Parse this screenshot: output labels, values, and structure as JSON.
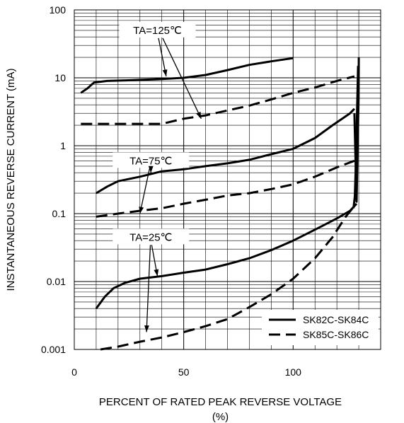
{
  "chart_data": {
    "type": "line",
    "xlabel_line1": "PERCENT OF RATED PEAK REVERSE VOLTAGE",
    "xlabel_line2": "(%)",
    "ylabel": "INSTANTANEOUS REVERSE CURRENT (mA)",
    "xlim": [
      0,
      140
    ],
    "ylim": [
      0.001,
      100
    ],
    "y_scale": "log",
    "x_ticks": [
      {
        "value": 0,
        "label": "0"
      },
      {
        "value": 50,
        "label": "50"
      },
      {
        "value": 100,
        "label": "100"
      }
    ],
    "y_ticks": [
      {
        "value": 100,
        "label": "100"
      },
      {
        "value": 10,
        "label": "10"
      },
      {
        "value": 1,
        "label": "1"
      },
      {
        "value": 0.1,
        "label": "0.1"
      },
      {
        "value": 0.01,
        "label": "0.01"
      },
      {
        "value": 0.001,
        "label": "0.001"
      }
    ],
    "grid": true,
    "legend_position": "bottom-right",
    "series": [
      {
        "name": "SK82C-SK84C",
        "style": "solid",
        "group": "TA=125℃",
        "points": [
          [
            3,
            6
          ],
          [
            6,
            7
          ],
          [
            9,
            8.5
          ],
          [
            15,
            9
          ],
          [
            25,
            9.2
          ],
          [
            40,
            9.6
          ],
          [
            50,
            10
          ],
          [
            60,
            11
          ],
          [
            70,
            13
          ],
          [
            80,
            15.5
          ],
          [
            90,
            17.5
          ],
          [
            100,
            19.5
          ]
        ]
      },
      {
        "name": "SK85C-SK86C",
        "style": "dashed",
        "group": "TA=125℃",
        "points": [
          [
            3,
            2.1
          ],
          [
            20,
            2.1
          ],
          [
            40,
            2.1
          ],
          [
            50,
            2.5
          ],
          [
            60,
            2.8
          ],
          [
            70,
            3.3
          ],
          [
            80,
            3.9
          ],
          [
            90,
            4.8
          ],
          [
            100,
            6
          ],
          [
            110,
            7.2
          ],
          [
            120,
            9
          ],
          [
            128,
            10.5
          ]
        ]
      },
      {
        "name": "SK82C-SK84C",
        "style": "solid",
        "group": "TA=75℃",
        "points": [
          [
            10,
            0.2
          ],
          [
            15,
            0.25
          ],
          [
            20,
            0.3
          ],
          [
            30,
            0.35
          ],
          [
            40,
            0.42
          ],
          [
            50,
            0.45
          ],
          [
            60,
            0.5
          ],
          [
            70,
            0.55
          ],
          [
            80,
            0.62
          ],
          [
            90,
            0.75
          ],
          [
            100,
            0.9
          ],
          [
            110,
            1.3
          ],
          [
            118,
            2
          ],
          [
            126,
            3
          ],
          [
            128,
            3.5
          ]
        ]
      },
      {
        "name": "SK85C-SK86C",
        "style": "dashed",
        "group": "TA=75℃",
        "points": [
          [
            10,
            0.09
          ],
          [
            20,
            0.1
          ],
          [
            30,
            0.11
          ],
          [
            40,
            0.12
          ],
          [
            50,
            0.14
          ],
          [
            60,
            0.16
          ],
          [
            70,
            0.185
          ],
          [
            80,
            0.2
          ],
          [
            90,
            0.23
          ],
          [
            100,
            0.27
          ],
          [
            110,
            0.35
          ],
          [
            120,
            0.48
          ],
          [
            128,
            0.6
          ]
        ]
      },
      {
        "name": "SK82C-SK84C",
        "style": "solid",
        "group": "TA=25℃",
        "points": [
          [
            10,
            0.004
          ],
          [
            14,
            0.006
          ],
          [
            18,
            0.008
          ],
          [
            23,
            0.0095
          ],
          [
            30,
            0.011
          ],
          [
            40,
            0.012
          ],
          [
            50,
            0.0135
          ],
          [
            60,
            0.015
          ],
          [
            70,
            0.018
          ],
          [
            80,
            0.022
          ],
          [
            90,
            0.029
          ],
          [
            100,
            0.04
          ],
          [
            110,
            0.058
          ],
          [
            120,
            0.085
          ],
          [
            126,
            0.11
          ],
          [
            129,
            0.14
          ]
        ]
      },
      {
        "name": "SK85C-SK86C",
        "style": "dashed",
        "group": "TA=25℃",
        "points": [
          [
            12,
            0.001
          ],
          [
            20,
            0.0011
          ],
          [
            30,
            0.0013
          ],
          [
            40,
            0.0015
          ],
          [
            50,
            0.0018
          ],
          [
            60,
            0.0022
          ],
          [
            70,
            0.0028
          ],
          [
            80,
            0.0042
          ],
          [
            90,
            0.0065
          ],
          [
            100,
            0.011
          ],
          [
            110,
            0.022
          ],
          [
            118,
            0.045
          ],
          [
            124,
            0.09
          ],
          [
            128,
            0.13
          ]
        ]
      },
      {
        "name": "SK82C-SK84C",
        "style": "solid",
        "group": "breakdown",
        "points": [
          [
            128,
            3
          ],
          [
            128.6,
            0.5
          ],
          [
            129,
            0.15
          ],
          [
            129.5,
            1
          ],
          [
            129.9,
            5
          ],
          [
            130,
            20
          ]
        ]
      },
      {
        "name": "SK85C-SK86C",
        "style": "solid",
        "group": "breakdown",
        "points": [
          [
            127.6,
            0.12
          ],
          [
            128.2,
            0.18
          ],
          [
            128.7,
            0.6
          ],
          [
            129.2,
            3
          ],
          [
            129.7,
            15
          ]
        ]
      }
    ],
    "legend": [
      {
        "label": "SK82C-SK84C",
        "style": "solid"
      },
      {
        "label": "SK85C-SK86C",
        "style": "dashed"
      }
    ],
    "annotations": [
      {
        "text": "TA=125℃",
        "x": 38,
        "y": 50,
        "arrows": [
          [
            42,
            10.5
          ],
          [
            58,
            2.5
          ]
        ]
      },
      {
        "text": "TA=75℃",
        "x": 35,
        "y": 0.6,
        "arrows": [
          [
            35,
            0.4
          ],
          [
            30,
            0.1
          ]
        ]
      },
      {
        "text": "TA=25℃",
        "x": 35,
        "y": 0.045,
        "arrows": [
          [
            38,
            0.012
          ],
          [
            33,
            0.0018
          ]
        ]
      }
    ]
  }
}
